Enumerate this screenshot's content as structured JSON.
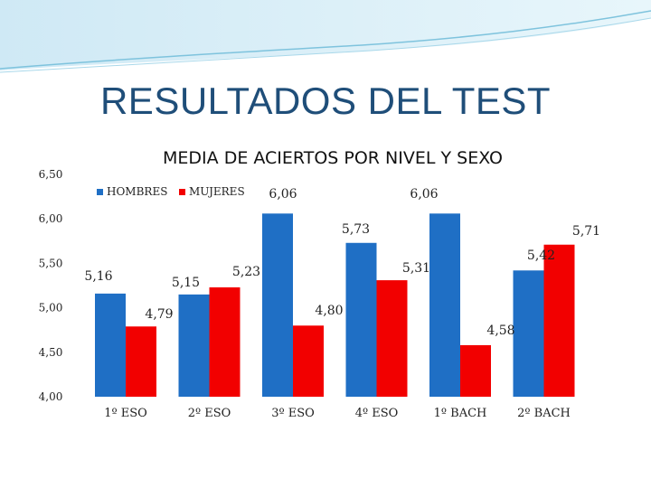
{
  "slide": {
    "title": "RESULTADOS DEL TEST"
  },
  "chart_data": {
    "type": "bar",
    "title": "MEDIA DE ACIERTOS POR NIVEL Y SEXO",
    "categories": [
      "1º ESO",
      "2º ESO",
      "3º ESO",
      "4º ESO",
      "1º BACH",
      "2º BACH"
    ],
    "series": [
      {
        "name": "HOMBRES",
        "color": "#1f6fc5",
        "values": [
          5.16,
          5.15,
          6.06,
          5.73,
          6.06,
          5.42
        ],
        "labels": [
          "5,16",
          "5,15",
          "6,06",
          "5,73",
          "6,06",
          "5,42"
        ]
      },
      {
        "name": "MUJERES",
        "color": "#f20000",
        "values": [
          4.79,
          5.23,
          4.8,
          5.31,
          4.58,
          5.71
        ],
        "labels": [
          "4,79",
          "5,23",
          "4,80",
          "5,31",
          "4,58",
          "5,71"
        ]
      }
    ],
    "yticks": [
      4.0,
      4.5,
      5.0,
      5.5,
      6.0,
      6.5
    ],
    "ytick_labels": [
      "4,00",
      "4,50",
      "5,00",
      "5,50",
      "6,00",
      "6,50"
    ],
    "ylim": [
      4.0,
      6.5
    ],
    "xlabel": "",
    "ylabel": "",
    "grid": false,
    "legend": "top-left",
    "note": "Bars for 3º ESO and 1º BACH (HOMBRES) are drawn clipped near the top of the plot area in the original."
  }
}
